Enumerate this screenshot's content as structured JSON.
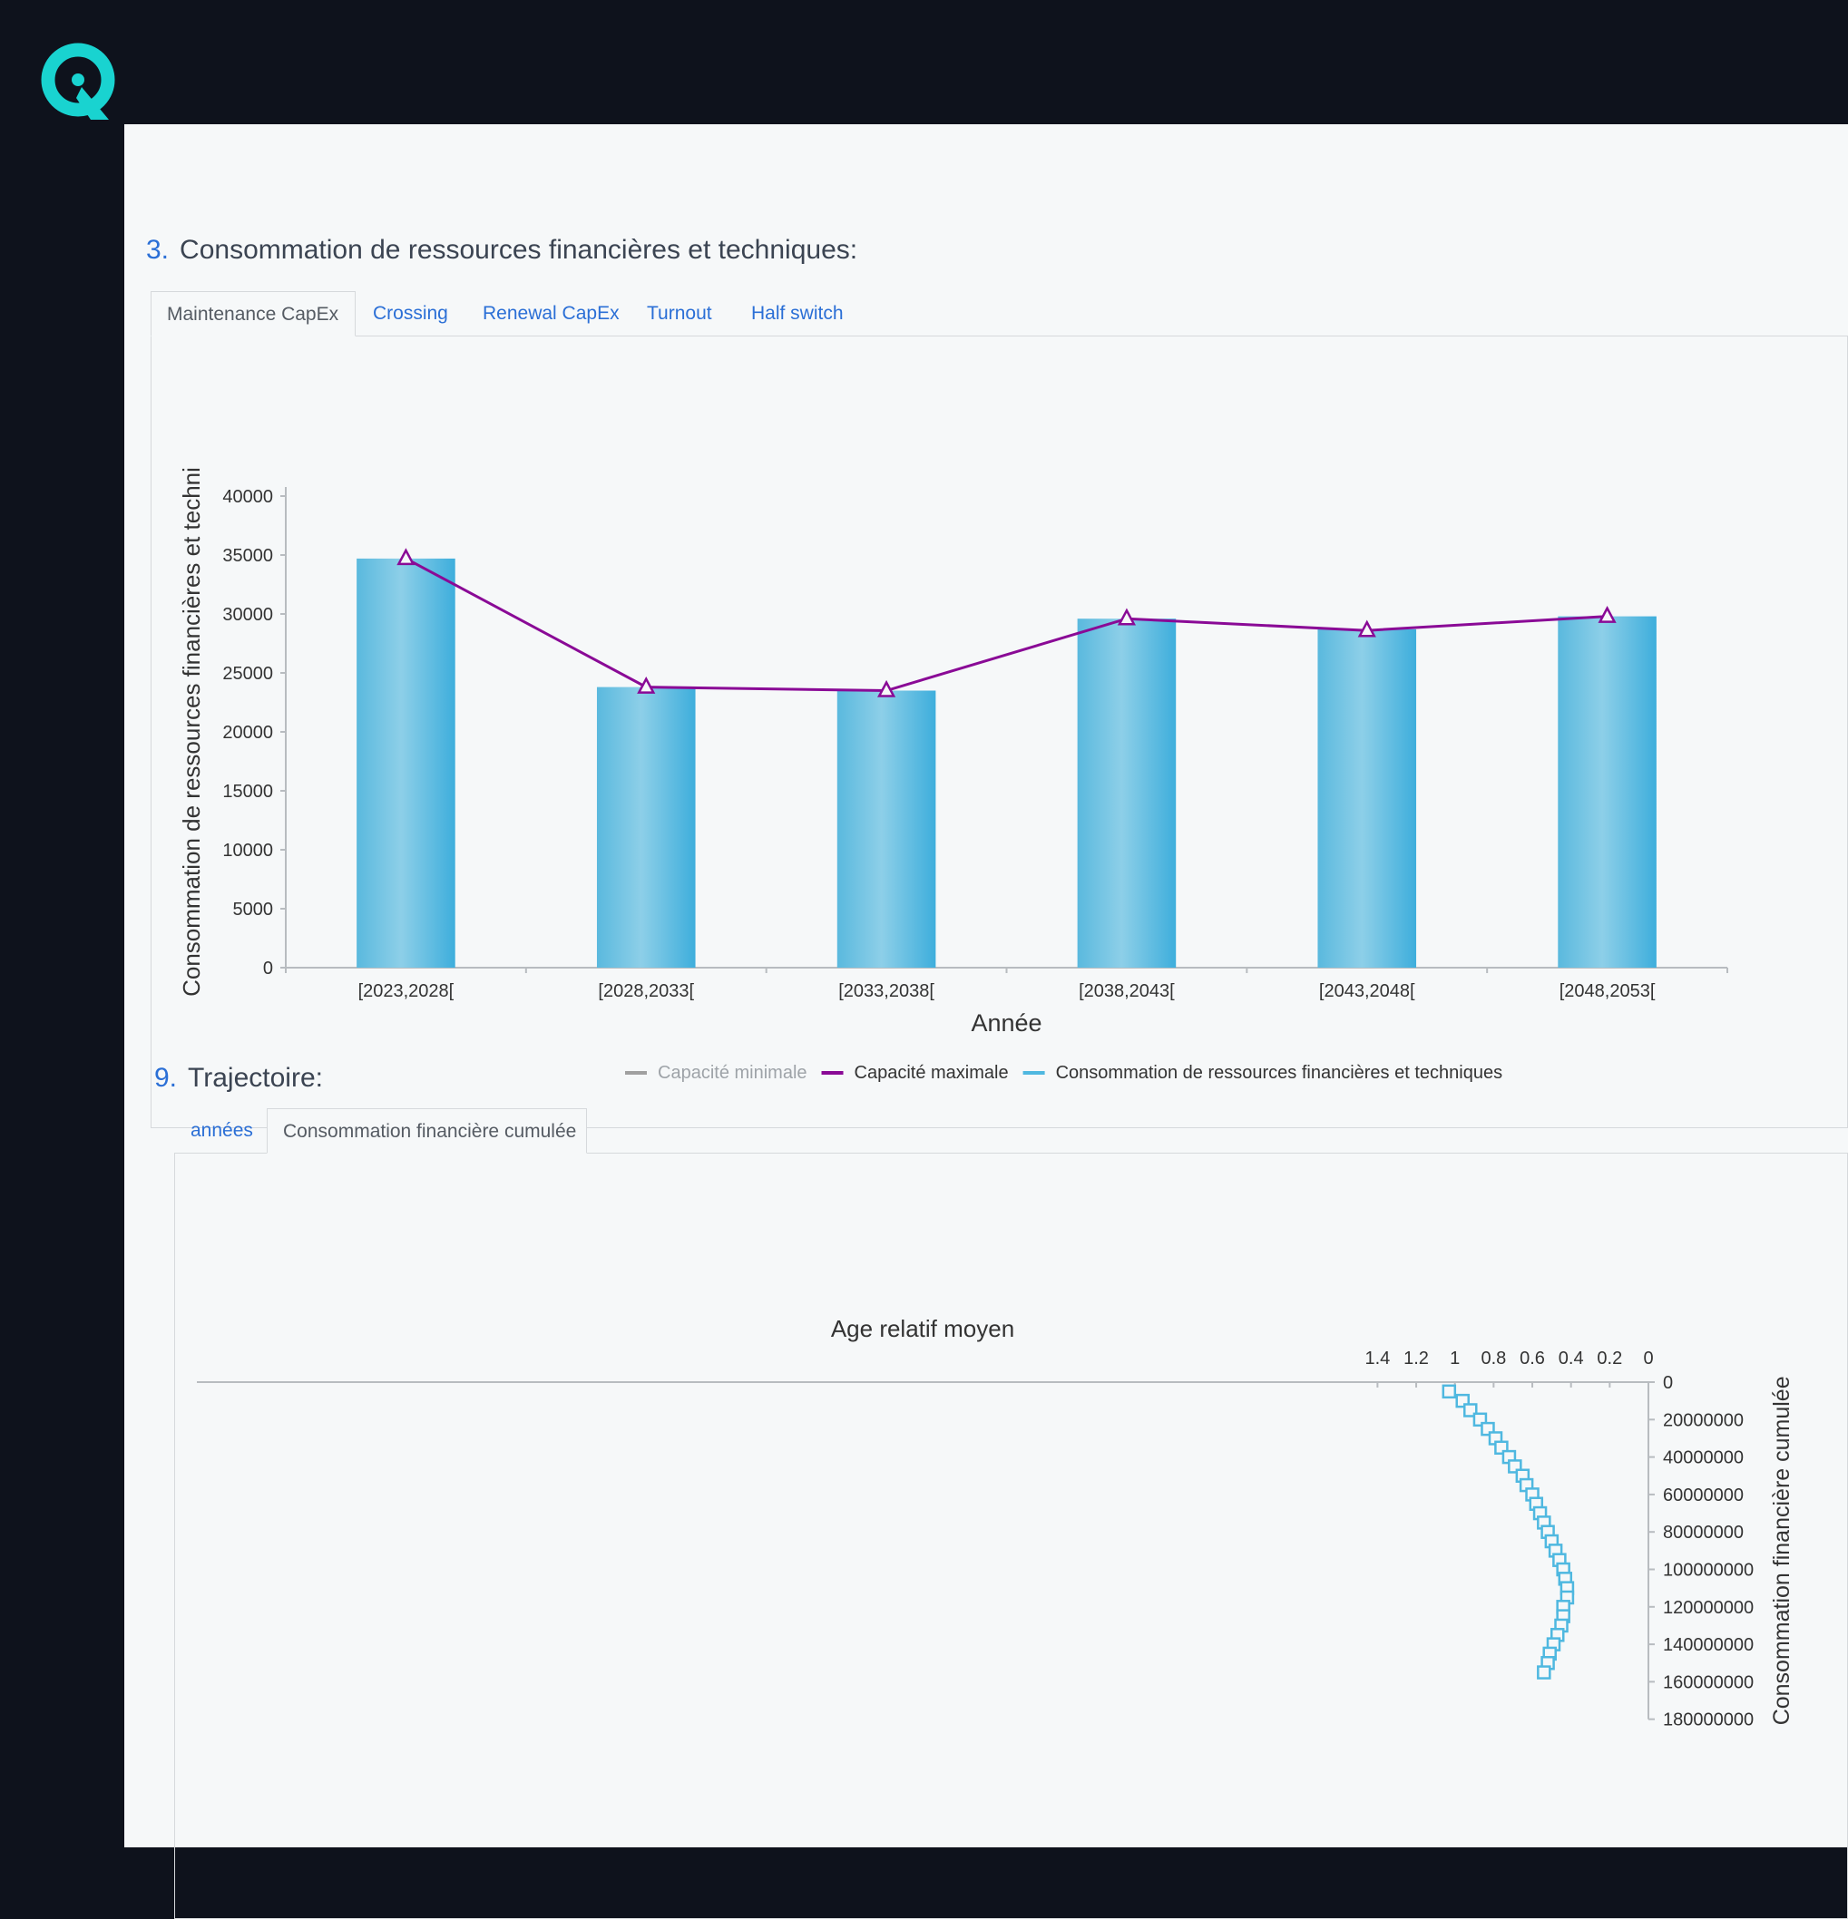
{
  "app": {
    "brand_colors": {
      "accent": "#19d3d0",
      "background": "#0e121c"
    },
    "logo_icon": "q-logo-icon"
  },
  "section3": {
    "number": "3.",
    "title": "Consommation de ressources financières et techniques:",
    "tabs": [
      {
        "label": "Maintenance CapEx",
        "active": true
      },
      {
        "label": "Crossing",
        "active": false
      },
      {
        "label": "Renewal CapEx",
        "active": false
      },
      {
        "label": "Turnout",
        "active": false
      },
      {
        "label": "Half switch",
        "active": false
      }
    ]
  },
  "section9": {
    "number": "9.",
    "title": "Trajectoire:",
    "tabs": [
      {
        "label": "années",
        "active": false
      },
      {
        "label": "Consommation financière cumulée",
        "active": true
      }
    ]
  },
  "chart_data": [
    {
      "type": "bar",
      "xlabel": "Année",
      "ylabel": "Consommation de ressources financières et techni",
      "ylim": [
        0,
        40000
      ],
      "yticks": [
        "0",
        "5000",
        "10000",
        "15000",
        "20000",
        "25000",
        "30000",
        "35000",
        "40000"
      ],
      "categories": [
        "[2023,2028[",
        "[2028,2033[",
        "[2033,2038[",
        "[2038,2043[",
        "[2043,2048[",
        "[2048,2053["
      ],
      "grid": false,
      "legend_position": "bottom",
      "legend": [
        {
          "label": "Capacité minimale",
          "color": "#a0a0a0",
          "disabled": true
        },
        {
          "label": "Capacité maximale",
          "color": "#8a0a96",
          "disabled": false
        },
        {
          "label": "Consommation de ressources financières et techniques",
          "color": "#4fb8e0",
          "disabled": false
        }
      ],
      "series": [
        {
          "name": "Consommation de ressources financières et techniques",
          "type": "bar",
          "color": "#4fb8e0",
          "values": [
            34700,
            23800,
            23500,
            29600,
            28700,
            29800
          ]
        },
        {
          "name": "Capacité maximale",
          "type": "line",
          "marker": "triangle",
          "color": "#8a0a96",
          "values": [
            34700,
            23800,
            23500,
            29600,
            28600,
            29800
          ]
        }
      ]
    },
    {
      "type": "scatter",
      "xlabel": "Age relatif moyen",
      "ylabel": "Consommation financière cumulée",
      "x_axis_position": "top",
      "x_reversed": true,
      "xlim": [
        0,
        1.5
      ],
      "xticks": [
        "1.4",
        "1.2",
        "1",
        "0.8",
        "0.6",
        "0.4",
        "0.2",
        "0"
      ],
      "y_axis_position": "right",
      "y_reversed": true,
      "ylim": [
        0,
        180000000
      ],
      "yticks": [
        "0",
        "20000000",
        "40000000",
        "60000000",
        "80000000",
        "100000000",
        "120000000",
        "140000000",
        "160000000",
        "180000000"
      ],
      "marker": "square",
      "color": "#4fb8e0",
      "points": [
        [
          1.03,
          5000000
        ],
        [
          0.96,
          10000000
        ],
        [
          0.92,
          15000000
        ],
        [
          0.87,
          20000000
        ],
        [
          0.83,
          25000000
        ],
        [
          0.79,
          30000000
        ],
        [
          0.76,
          35000000
        ],
        [
          0.72,
          40000000
        ],
        [
          0.69,
          45000000
        ],
        [
          0.65,
          50000000
        ],
        [
          0.63,
          55000000
        ],
        [
          0.6,
          60000000
        ],
        [
          0.58,
          65000000
        ],
        [
          0.56,
          70000000
        ],
        [
          0.54,
          75000000
        ],
        [
          0.52,
          80000000
        ],
        [
          0.5,
          85000000
        ],
        [
          0.48,
          90000000
        ],
        [
          0.46,
          95000000
        ],
        [
          0.44,
          100000000
        ],
        [
          0.43,
          105000000
        ],
        [
          0.42,
          110000000
        ],
        [
          0.42,
          115000000
        ],
        [
          0.44,
          120000000
        ],
        [
          0.44,
          125000000
        ],
        [
          0.45,
          130000000
        ],
        [
          0.47,
          135000000
        ],
        [
          0.49,
          140000000
        ],
        [
          0.51,
          145000000
        ],
        [
          0.52,
          150000000
        ],
        [
          0.54,
          155000000
        ]
      ]
    }
  ]
}
